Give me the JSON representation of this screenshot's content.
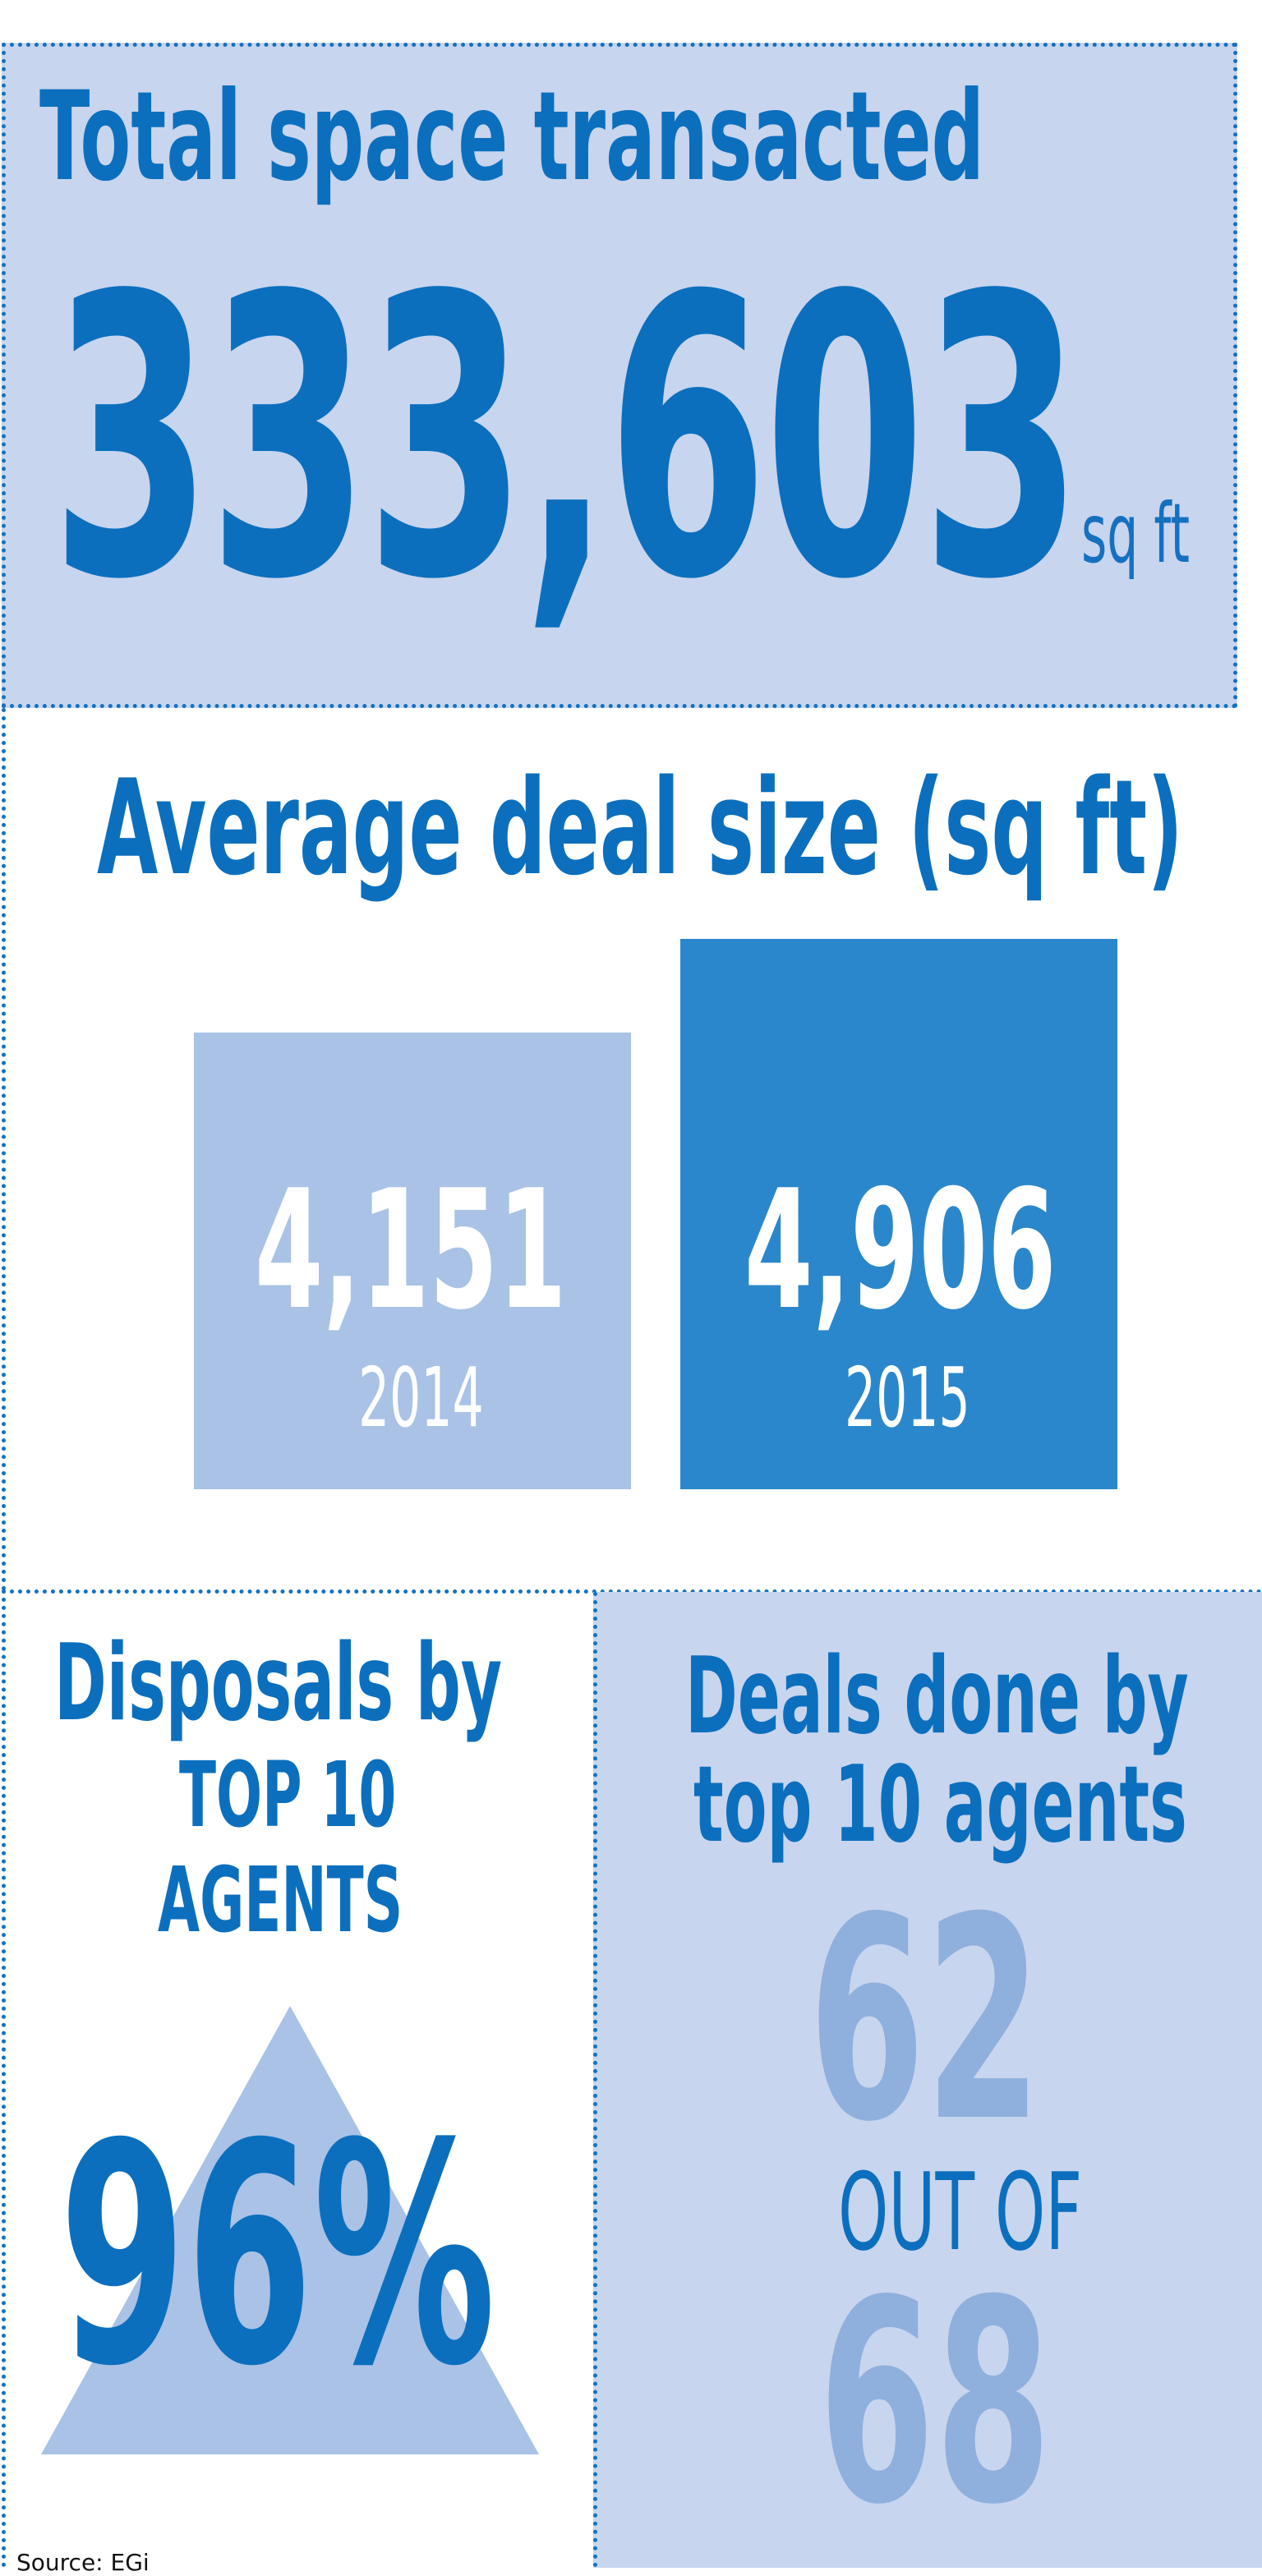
{
  "total_space": {
    "title": "Total space transacted",
    "value": "333,603",
    "unit": "sq ft"
  },
  "average_deal": {
    "title": "Average deal size (sq ft)",
    "years": [
      {
        "value": "4,151",
        "year": "2014",
        "amount": 4151
      },
      {
        "value": "4,906",
        "year": "2015",
        "amount": 4906
      }
    ]
  },
  "disposals": {
    "title_line1": "Disposals by",
    "title_line2": "TOP 10",
    "title_line3": "AGENTS",
    "value": "96%"
  },
  "deals_done": {
    "title_line1": "Deals done by",
    "title_line2": "top 10 agents",
    "count": "62",
    "connector": "OUT OF",
    "total": "68"
  },
  "source": "Source: EGi",
  "colors": {
    "dark_blue": "#0b6fbe",
    "panel_light": "#c8d5ee",
    "bar_light": "#a9c2e6",
    "bar_dark": "#2b87cb",
    "number_faded": "#8fb0dd"
  }
}
